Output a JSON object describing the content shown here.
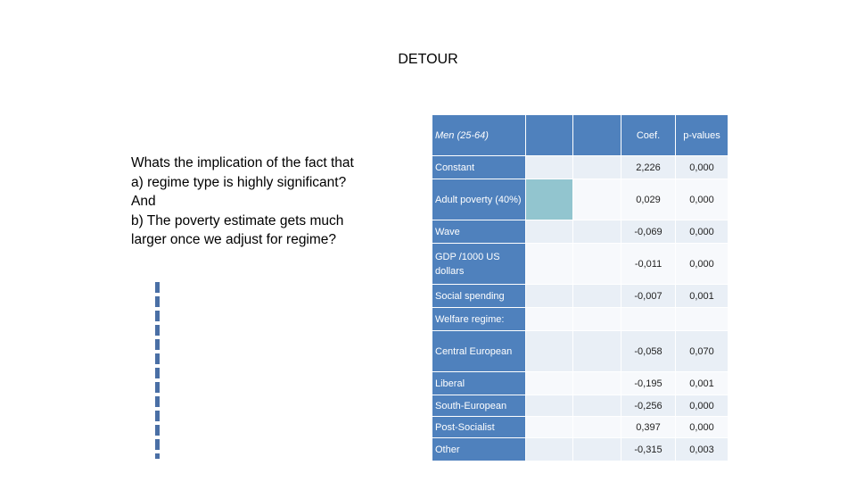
{
  "slide": {
    "title": "DETOUR",
    "question_lines": [
      "Whats the implication of the fact that",
      "a) regime type is highly significant?",
      "And",
      "b) The poverty estimate gets much",
      "larger once we adjust for regime?"
    ]
  },
  "table": {
    "header": {
      "label": "Men (25-64)",
      "coef": "Coef.",
      "pvalues": "p-values"
    },
    "rows": [
      {
        "label": "Constant",
        "coef": "2,226",
        "p": "0,000"
      },
      {
        "label": "Adult poverty (40%)",
        "coef": "0,029",
        "p": "0,000"
      },
      {
        "label": "Wave",
        "coef": "-0,069",
        "p": "0,000"
      },
      {
        "label": "GDP /1000 US dollars",
        "coef": "-0,011",
        "p": "0,000"
      },
      {
        "label": "Social spending",
        "coef": "-0,007",
        "p": "0,001"
      },
      {
        "label": "Welfare regime:",
        "coef": "",
        "p": ""
      },
      {
        "label": "Central European",
        "coef": "-0,058",
        "p": "0,070"
      },
      {
        "label": "Liberal",
        "coef": "-0,195",
        "p": "0,001"
      },
      {
        "label": "South-European",
        "coef": "-0,256",
        "p": "0,000"
      },
      {
        "label": "Post-Socialist",
        "coef": "0,397",
        "p": "0,000"
      },
      {
        "label": "Other",
        "coef": "-0,315",
        "p": "0,003"
      }
    ]
  },
  "colors": {
    "header_blue": "#4f81bd",
    "teal_highlight": "#92c5cf",
    "band_light": "#e9eff6",
    "dashed_line": "#4a6fa5"
  }
}
